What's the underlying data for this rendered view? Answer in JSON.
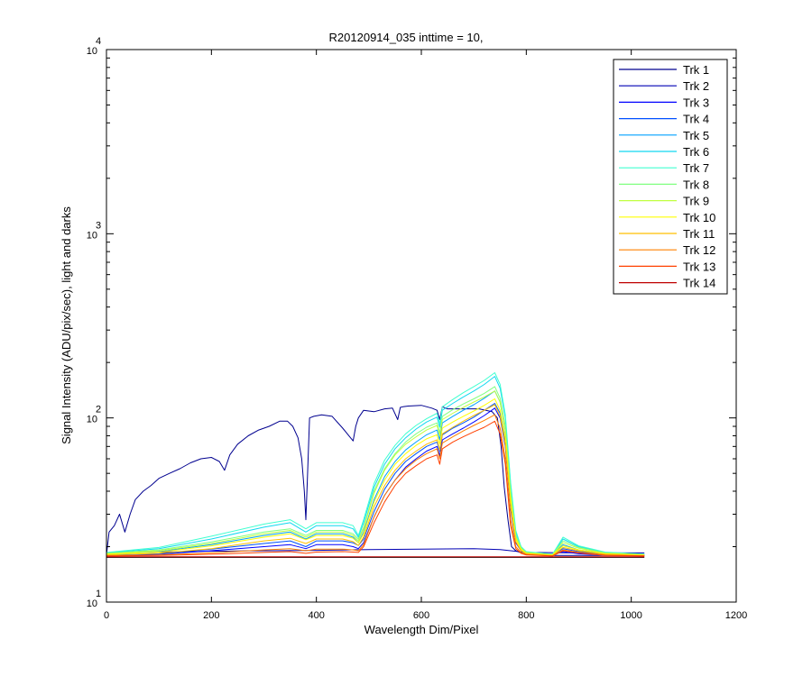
{
  "chart_data": {
    "type": "line",
    "title": "R20120914_035 inttime = 10,",
    "xlabel": "Wavelength Dim/Pixel",
    "ylabel": "Signal Intensity (ADU/pix/sec), light and darks",
    "xlim": [
      0,
      1200
    ],
    "ylim": [
      10,
      10000
    ],
    "yscale": "log",
    "xticks": [
      0,
      200,
      400,
      600,
      800,
      1000,
      1200
    ],
    "xtick_labels": [
      "0",
      "200",
      "400",
      "600",
      "800",
      "1000",
      "1200"
    ],
    "yticks": [
      {
        "value": 10,
        "base": "10",
        "exp": "1"
      },
      {
        "value": 100,
        "base": "10",
        "exp": "2"
      },
      {
        "value": 1000,
        "base": "10",
        "exp": "3"
      },
      {
        "value": 10000,
        "base": "10",
        "exp": "4"
      }
    ],
    "grid": false,
    "legend_position": "top-right",
    "series": [
      {
        "name": "Trk 1",
        "color": "#00008f",
        "x": [
          0,
          5,
          15,
          25,
          35,
          45,
          55,
          70,
          85,
          100,
          120,
          140,
          160,
          180,
          200,
          215,
          225,
          235,
          250,
          270,
          290,
          310,
          330,
          345,
          355,
          365,
          372,
          377,
          380,
          383,
          387,
          395,
          410,
          430,
          450,
          465,
          470,
          475,
          480,
          490,
          510,
          530,
          545,
          555,
          560,
          565,
          575,
          600,
          620,
          630,
          635,
          640,
          650,
          680,
          710,
          735,
          745,
          752,
          758,
          765,
          772,
          780,
          790,
          800,
          820,
          850,
          900,
          1000,
          1025
        ],
        "y": [
          18,
          24,
          26,
          30,
          24,
          30,
          36,
          40,
          43,
          47,
          50,
          53,
          57,
          60,
          61,
          58,
          52,
          63,
          72,
          80,
          86,
          90,
          96,
          96,
          90,
          78,
          60,
          40,
          28,
          48,
          100,
          102,
          104,
          102,
          88,
          78,
          75,
          90,
          100,
          110,
          108,
          112,
          113,
          98,
          114,
          115,
          116,
          117,
          113,
          110,
          98,
          115,
          112,
          112,
          112,
          108,
          100,
          70,
          42,
          28,
          20,
          19,
          18.5,
          18.2,
          18,
          17.9,
          17.9,
          17.9,
          17.9
        ]
      },
      {
        "name": "Trk 2",
        "color": "#0000b4",
        "x": [
          0,
          100,
          200,
          300,
          400,
          500,
          600,
          700,
          750,
          770,
          800,
          900,
          1025
        ],
        "y": [
          18.5,
          18.7,
          18.9,
          19,
          19.1,
          19.3,
          19.4,
          19.5,
          19.3,
          19,
          18.6,
          18.5,
          18.5
        ]
      },
      {
        "name": "Trk 3",
        "color": "#0000ff",
        "x": [
          0,
          100,
          200,
          300,
          350,
          380,
          400,
          450,
          470,
          480,
          490,
          510,
          530,
          550,
          570,
          590,
          610,
          630,
          635,
          640,
          660,
          680,
          700,
          720,
          740,
          750,
          760,
          770,
          780,
          790,
          800,
          850,
          870,
          900,
          950,
          1025
        ],
        "y": [
          18,
          18.2,
          19,
          20,
          20.5,
          19.5,
          20.5,
          20.5,
          20,
          19.5,
          21,
          29,
          38,
          46,
          54,
          60,
          66,
          70,
          62,
          76,
          82,
          88,
          95,
          103,
          113,
          100,
          70,
          32,
          21,
          19,
          18.3,
          18,
          18.8,
          18.3,
          18,
          18
        ]
      },
      {
        "name": "Trk 4",
        "color": "#0050ff",
        "x": [
          0,
          100,
          200,
          300,
          350,
          380,
          400,
          450,
          470,
          480,
          490,
          510,
          530,
          550,
          570,
          590,
          610,
          630,
          635,
          640,
          660,
          680,
          700,
          720,
          740,
          750,
          760,
          770,
          780,
          790,
          800,
          850,
          870,
          900,
          950,
          1025
        ],
        "y": [
          18,
          18.3,
          19.4,
          20.8,
          21.5,
          20,
          21.5,
          21.5,
          21,
          20.3,
          22,
          31,
          41,
          50,
          58,
          64,
          70,
          74,
          66,
          81,
          88,
          94,
          101,
          110,
          120,
          106,
          74,
          34,
          22,
          19.5,
          18.5,
          18,
          19.5,
          18.8,
          18.2,
          18
        ]
      },
      {
        "name": "Trk 5",
        "color": "#00a0ff",
        "x": [
          0,
          100,
          200,
          300,
          350,
          380,
          400,
          450,
          470,
          480,
          490,
          510,
          530,
          550,
          570,
          590,
          610,
          630,
          635,
          640,
          660,
          680,
          700,
          720,
          740,
          750,
          760,
          770,
          780,
          790,
          800,
          850,
          870,
          900,
          950,
          1025
        ],
        "y": [
          18.2,
          18.8,
          20.5,
          23,
          24,
          22,
          23.5,
          23.5,
          22.5,
          21,
          24,
          36,
          48,
          58,
          67,
          74,
          81,
          86,
          76,
          94,
          102,
          110,
          118,
          128,
          140,
          122,
          85,
          38,
          23,
          19.5,
          18.5,
          18,
          20.5,
          19.2,
          18.4,
          18
        ]
      },
      {
        "name": "Trk 6",
        "color": "#10d8f0",
        "x": [
          0,
          100,
          200,
          300,
          350,
          380,
          400,
          450,
          470,
          480,
          490,
          510,
          530,
          550,
          570,
          590,
          610,
          630,
          635,
          640,
          660,
          680,
          700,
          720,
          740,
          750,
          760,
          770,
          780,
          790,
          800,
          850,
          870,
          900,
          950,
          1025
        ],
        "y": [
          18.5,
          19.5,
          22,
          25.5,
          27,
          24,
          26,
          26,
          25,
          22.5,
          27,
          42,
          56,
          68,
          78,
          87,
          95,
          101,
          89,
          110,
          120,
          130,
          140,
          152,
          168,
          145,
          100,
          44,
          24,
          20,
          18.7,
          18.2,
          22,
          20,
          18.6,
          18.2
        ]
      },
      {
        "name": "Trk 7",
        "color": "#40ffd0",
        "x": [
          0,
          100,
          200,
          300,
          350,
          380,
          400,
          450,
          470,
          480,
          490,
          510,
          530,
          550,
          570,
          590,
          610,
          630,
          635,
          640,
          660,
          680,
          700,
          720,
          740,
          750,
          760,
          770,
          780,
          790,
          800,
          850,
          870,
          900,
          950,
          1025
        ],
        "y": [
          18.6,
          19.8,
          22.8,
          26.5,
          28,
          25,
          27,
          27,
          26,
          23,
          28,
          44,
          59,
          71,
          82,
          91,
          99,
          106,
          93,
          115,
          126,
          137,
          148,
          160,
          176,
          152,
          104,
          45,
          24.5,
          20,
          18.8,
          18.2,
          22.5,
          20.2,
          18.7,
          18.2
        ]
      },
      {
        "name": "Trk 8",
        "color": "#80ff80",
        "x": [
          0,
          100,
          200,
          300,
          350,
          380,
          400,
          450,
          470,
          480,
          490,
          510,
          530,
          550,
          570,
          590,
          610,
          630,
          635,
          640,
          660,
          680,
          700,
          720,
          740,
          750,
          760,
          770,
          780,
          790,
          800,
          850,
          870,
          900,
          950,
          1025
        ],
        "y": [
          18.4,
          19.2,
          21.2,
          24,
          25,
          23,
          24.5,
          24.5,
          23.5,
          22,
          25.5,
          40,
          53,
          64,
          74,
          82,
          89,
          94,
          83,
          102,
          111,
          119,
          127,
          136,
          148,
          128,
          90,
          40,
          23,
          19.7,
          18.6,
          18.1,
          21.5,
          19.8,
          18.5,
          18.1
        ]
      },
      {
        "name": "Trk 9",
        "color": "#c0ff40",
        "x": [
          0,
          100,
          200,
          300,
          350,
          380,
          400,
          450,
          470,
          480,
          490,
          510,
          530,
          550,
          570,
          590,
          610,
          630,
          635,
          640,
          660,
          680,
          700,
          720,
          740,
          750,
          760,
          770,
          780,
          790,
          800,
          850,
          870,
          900,
          950,
          1025
        ],
        "y": [
          18.3,
          19,
          20.8,
          23.5,
          24.5,
          22.5,
          24,
          24,
          23,
          21.5,
          25,
          39,
          52,
          63,
          72,
          79,
          86,
          91,
          80,
          98,
          106,
          114,
          122,
          130,
          140,
          122,
          86,
          38,
          22.5,
          19.5,
          18.5,
          18,
          21,
          19.6,
          18.4,
          18
        ]
      },
      {
        "name": "Trk 10",
        "color": "#ffff00",
        "x": [
          0,
          100,
          200,
          300,
          350,
          380,
          400,
          450,
          470,
          480,
          490,
          510,
          530,
          550,
          570,
          590,
          610,
          630,
          635,
          640,
          660,
          680,
          700,
          720,
          740,
          750,
          760,
          770,
          780,
          790,
          800,
          850,
          870,
          900,
          950,
          1025
        ],
        "y": [
          18.2,
          18.7,
          20.2,
          22.5,
          23.5,
          21.8,
          23,
          23,
          22.2,
          21,
          23.5,
          35,
          46,
          56,
          64,
          71,
          77,
          81,
          72,
          88,
          95,
          102,
          109,
          117,
          127,
          110,
          78,
          36,
          22,
          19.3,
          18.4,
          18,
          20.2,
          19.2,
          18.3,
          18
        ]
      },
      {
        "name": "Trk 11",
        "color": "#ffbf00",
        "x": [
          0,
          100,
          200,
          300,
          350,
          380,
          400,
          450,
          470,
          480,
          490,
          510,
          530,
          550,
          570,
          590,
          610,
          630,
          635,
          640,
          660,
          680,
          700,
          720,
          740,
          750,
          760,
          770,
          780,
          790,
          800,
          850,
          870,
          900,
          950,
          1025
        ],
        "y": [
          18,
          18.4,
          19.5,
          21.5,
          22.2,
          20.8,
          22,
          22,
          21.3,
          20.3,
          22.5,
          33,
          43,
          52,
          60,
          66,
          72,
          76,
          67,
          82,
          89,
          96,
          103,
          110,
          118,
          102,
          72,
          33,
          21.3,
          19,
          18.3,
          17.9,
          19.8,
          19,
          18.2,
          17.9
        ]
      },
      {
        "name": "Trk 12",
        "color": "#ff8000",
        "x": [
          0,
          100,
          200,
          300,
          350,
          380,
          400,
          450,
          470,
          480,
          490,
          510,
          530,
          550,
          570,
          590,
          610,
          630,
          635,
          640,
          660,
          680,
          700,
          720,
          740,
          750,
          760,
          770,
          780,
          790,
          800,
          850,
          870,
          900,
          950,
          1025
        ],
        "y": [
          17.8,
          18,
          18.5,
          19.2,
          19.5,
          19,
          19.4,
          19.4,
          19.2,
          19,
          20.5,
          29,
          38,
          46,
          53,
          59,
          64,
          68,
          60,
          73,
          79,
          85,
          91,
          97,
          104,
          88,
          60,
          28,
          20,
          18.6,
          18.1,
          17.8,
          19.2,
          18.6,
          18,
          17.8
        ]
      },
      {
        "name": "Trk 13",
        "color": "#ff4000",
        "x": [
          0,
          100,
          200,
          300,
          350,
          380,
          400,
          450,
          470,
          480,
          490,
          510,
          530,
          550,
          570,
          590,
          610,
          630,
          635,
          640,
          660,
          680,
          700,
          720,
          740,
          750,
          760,
          770,
          780,
          790,
          800,
          850,
          870,
          900,
          950,
          1025
        ],
        "y": [
          17.8,
          17.9,
          18.2,
          18.6,
          18.8,
          18.4,
          18.7,
          18.8,
          18.7,
          18.6,
          20,
          27,
          35,
          43,
          50,
          55,
          60,
          63,
          56,
          68,
          74,
          79,
          84,
          89,
          96,
          82,
          56,
          26,
          19.5,
          18.4,
          18,
          17.8,
          19,
          18.5,
          17.9,
          17.8
        ]
      },
      {
        "name": "Trk 14",
        "color": "#bf0000",
        "x": [
          0,
          100,
          200,
          300,
          400,
          500,
          600,
          700,
          800,
          900,
          1025
        ],
        "y": [
          17.6,
          17.6,
          17.6,
          17.6,
          17.6,
          17.6,
          17.6,
          17.6,
          17.6,
          17.6,
          17.6
        ]
      }
    ],
    "dark_series": [
      {
        "color": "#000000",
        "x": [
          0,
          1025
        ],
        "y": [
          17.5,
          17.5
        ]
      }
    ]
  }
}
